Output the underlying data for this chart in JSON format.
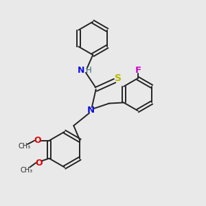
{
  "background_color": "#e9e9e9",
  "bond_color": "#222222",
  "atom_colors": {
    "N": "#1010dd",
    "S": "#b8b800",
    "O": "#dd0000",
    "F": "#cc00cc",
    "C": "#222222",
    "H": "#336666"
  },
  "figsize": [
    3.0,
    3.0
  ],
  "dpi": 100,
  "lw": 1.4
}
